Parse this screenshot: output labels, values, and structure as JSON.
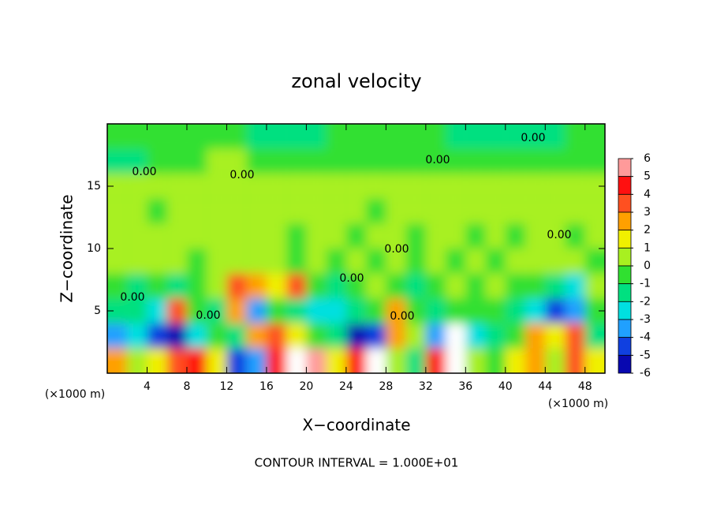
{
  "chart_data": {
    "type": "heatmap",
    "title": "zonal velocity",
    "x_label": "X−coordinate",
    "y_label": "Z−coordinate",
    "x_unit_labels": [
      "(×1000 m)",
      "(×1000 m)"
    ],
    "footer": "CONTOUR INTERVAL = 1.000E+01",
    "xlim": [
      0,
      50
    ],
    "ylim": [
      0,
      20
    ],
    "xticks": [
      4,
      8,
      12,
      16,
      20,
      24,
      28,
      32,
      36,
      40,
      44,
      48
    ],
    "yticks": [
      5,
      10,
      15
    ],
    "x": [
      1,
      3,
      5,
      7,
      9,
      11,
      13,
      15,
      17,
      19,
      21,
      23,
      25,
      27,
      29,
      31,
      33,
      35,
      37,
      39,
      41,
      43,
      45,
      47,
      49
    ],
    "y": [
      1,
      3,
      5,
      7,
      9,
      11,
      13,
      15,
      17,
      19
    ],
    "z": [
      [
        3,
        1,
        2,
        4,
        5,
        2,
        -4,
        -3,
        5,
        6.5,
        6,
        2,
        5,
        6.5,
        1,
        -1,
        5,
        6.5,
        1,
        0,
        2,
        3,
        1,
        4,
        2
      ],
      [
        -3,
        -2,
        -4,
        -5,
        -2,
        0,
        -1,
        3,
        4,
        2,
        0,
        -1,
        -5,
        -4,
        3,
        1,
        -3,
        -6.5,
        -2,
        -1,
        0,
        3,
        2,
        4,
        -1
      ],
      [
        -1,
        -1,
        -2,
        4,
        0,
        -1,
        3,
        -3,
        0,
        -1,
        -2,
        -2,
        -1,
        0,
        3,
        0,
        -1,
        0,
        0,
        0,
        -1,
        -2,
        -4,
        -3,
        0
      ],
      [
        0,
        -1,
        0,
        -1,
        0,
        1,
        4,
        3,
        2,
        4,
        0,
        -1,
        0,
        0.5,
        0,
        -1,
        0,
        0.5,
        0,
        1,
        0,
        0,
        -1,
        -2,
        1
      ],
      [
        1,
        1,
        0.5,
        0.5,
        0,
        1,
        1,
        1,
        0.5,
        0,
        0.5,
        0,
        0.5,
        0,
        1,
        0,
        0.5,
        0,
        0.5,
        0,
        0.5,
        1,
        1,
        0.5,
        0
      ],
      [
        0.5,
        1,
        1,
        1,
        0.5,
        1,
        0.5,
        1,
        0.5,
        0,
        0.5,
        0.5,
        0,
        0.5,
        0.5,
        0,
        0.5,
        0.5,
        0,
        0.5,
        0,
        0.5,
        0.5,
        0,
        0.5
      ],
      [
        0.5,
        0.5,
        0,
        0.5,
        0.5,
        0.5,
        0.5,
        0.5,
        0.5,
        0.5,
        0.5,
        0.5,
        0.5,
        0,
        0.5,
        0.5,
        0.5,
        0.5,
        0.5,
        0.5,
        0.5,
        0.5,
        0.5,
        0.5,
        0.5
      ],
      [
        0.5,
        0.5,
        0.5,
        0.5,
        0.5,
        0.5,
        0.5,
        0.5,
        0.5,
        0.5,
        0.5,
        0.5,
        0.5,
        0.5,
        0.5,
        0.5,
        0.5,
        0.5,
        0.5,
        0.5,
        0.5,
        0.5,
        0.5,
        0.5,
        0.5
      ],
      [
        -1,
        -1,
        -0.5,
        0,
        0,
        0.5,
        0.5,
        0,
        0,
        0,
        0,
        0,
        0,
        0,
        0,
        0,
        0,
        -0.5,
        -0.5,
        0,
        0,
        0,
        0,
        0,
        0
      ],
      [
        0,
        0,
        0,
        0,
        0,
        0,
        0,
        -1,
        -1,
        -1,
        -1,
        0,
        0,
        0,
        0,
        0,
        0,
        -1,
        -1,
        -1,
        -1,
        -1,
        -1,
        0,
        0
      ]
    ],
    "colorbar": {
      "ticks": [
        6,
        5,
        4,
        3,
        2,
        1,
        0,
        -1,
        -2,
        -3,
        -4,
        -5,
        -6
      ],
      "colors": [
        "#ff9a9a",
        "#ff1010",
        "#ff5020",
        "#ffa000",
        "#f0f000",
        "#a8f020",
        "#30e030",
        "#00e080",
        "#00e0e0",
        "#20a0ff",
        "#1040e0",
        "#0808b0"
      ],
      "out_of_range_color": "#ffffff"
    },
    "contour_labels": [
      "0.00",
      "0.00",
      "0.00",
      "0.00",
      "0.00",
      "0.00",
      "0.00",
      "0.00",
      "0.00",
      "0.00"
    ]
  }
}
